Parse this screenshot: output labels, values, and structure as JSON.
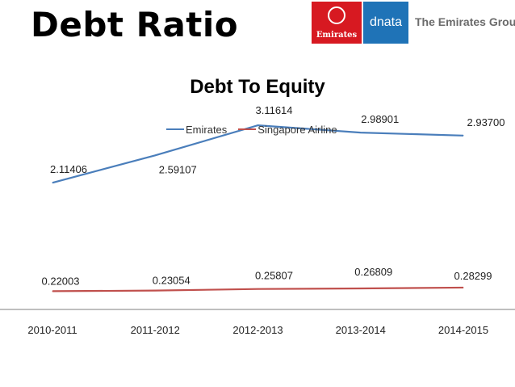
{
  "slide": {
    "title": "Debt Ratio"
  },
  "logos": {
    "emirates": "Emirates",
    "dnata": "dnata",
    "group": "The Emirates Group",
    "emirates_color": "#d71921",
    "dnata_color": "#1f73b7"
  },
  "chart_data": {
    "type": "line",
    "title": "Debt To Equity",
    "categories": [
      "2010-2011",
      "2011-2012",
      "2012-2013",
      "2013-2014",
      "2014-2015"
    ],
    "series": [
      {
        "name": "Emirates",
        "color": "#4a7ebb",
        "values": [
          2.11406,
          2.59107,
          3.11614,
          2.98901,
          2.937
        ],
        "labels": [
          "2.11406",
          "2.59107",
          "3.11614",
          "2.98901",
          "2.93700"
        ]
      },
      {
        "name": "Singapore Airline",
        "color": "#c0504d",
        "values": [
          0.22003,
          0.23054,
          0.25807,
          0.26809,
          0.28299
        ],
        "labels": [
          "0.22003",
          "0.23054",
          "0.25807",
          "0.26809",
          "0.28299"
        ]
      }
    ],
    "ylim": [
      0,
      4.5
    ],
    "grid": false,
    "legend_position": "top"
  }
}
